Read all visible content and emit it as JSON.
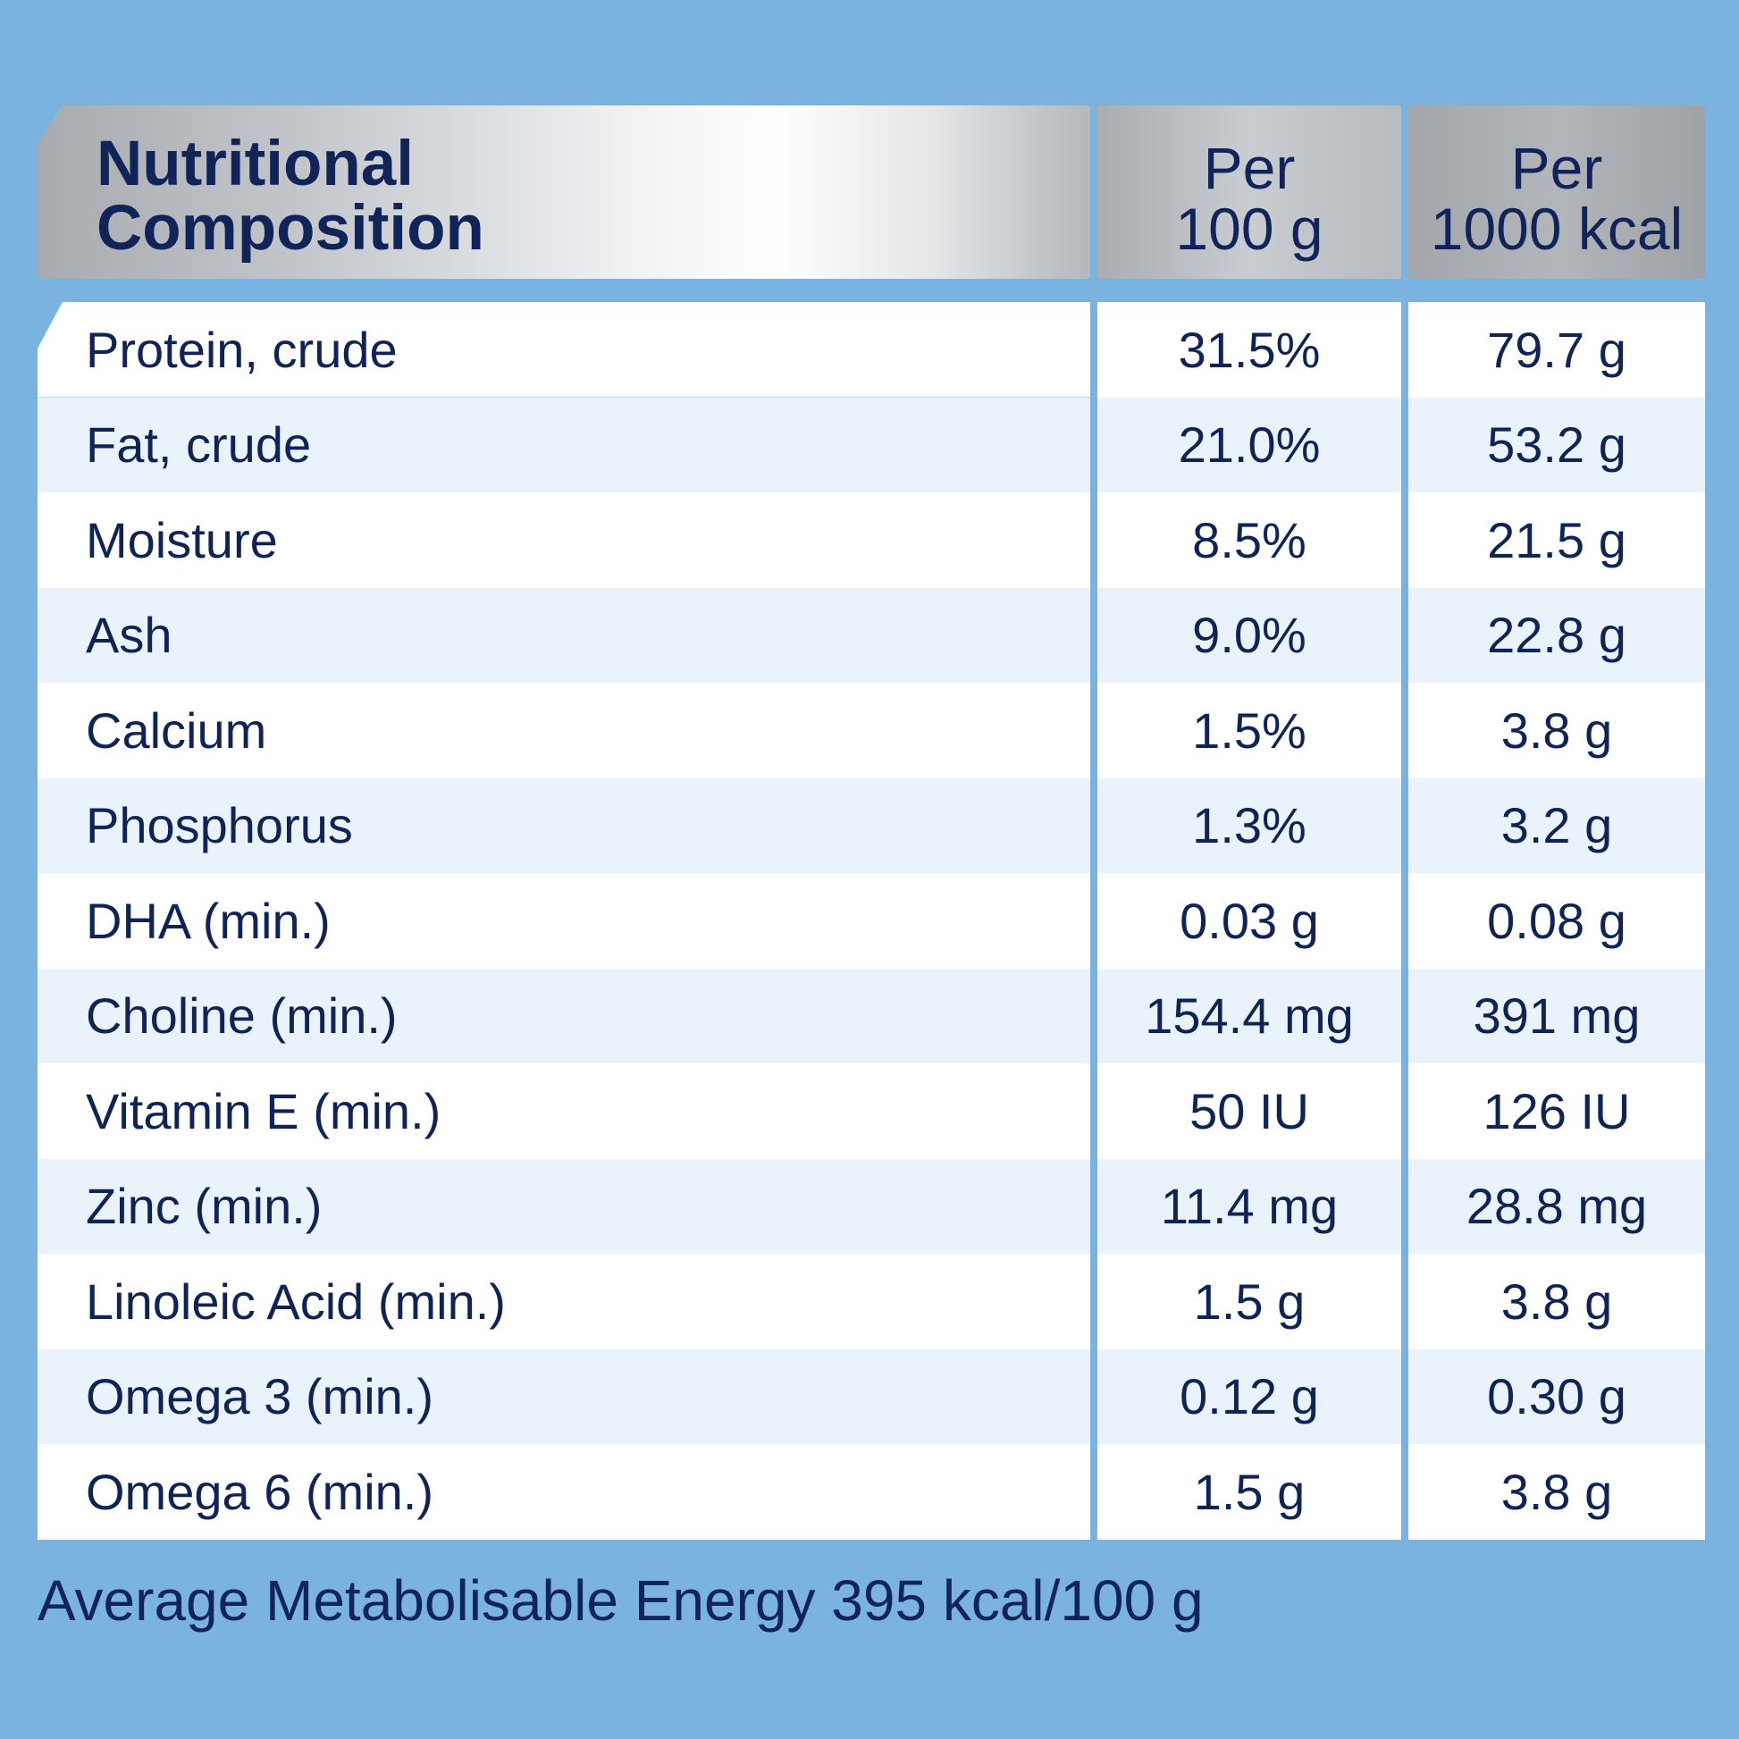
{
  "header": {
    "label": "Nutritional\nComposition",
    "col1": "Per\n100 g",
    "col2": "Per\n1000 kcal"
  },
  "rows": [
    {
      "name": "Protein, crude",
      "per100g": "31.5%",
      "per1000kcal": "79.7 g"
    },
    {
      "name": "Fat, crude",
      "per100g": "21.0%",
      "per1000kcal": "53.2 g"
    },
    {
      "name": "Moisture",
      "per100g": "8.5%",
      "per1000kcal": "21.5 g"
    },
    {
      "name": "Ash",
      "per100g": "9.0%",
      "per1000kcal": "22.8 g"
    },
    {
      "name": "Calcium",
      "per100g": "1.5%",
      "per1000kcal": "3.8 g"
    },
    {
      "name": "Phosphorus",
      "per100g": "1.3%",
      "per1000kcal": "3.2 g"
    },
    {
      "name": "DHA (min.)",
      "per100g": "0.03 g",
      "per1000kcal": "0.08 g"
    },
    {
      "name": "Choline (min.)",
      "per100g": "154.4 mg",
      "per1000kcal": "391 mg"
    },
    {
      "name": "Vitamin E (min.)",
      "per100g": "50 IU",
      "per1000kcal": "126 IU"
    },
    {
      "name": "Zinc (min.)",
      "per100g": "11.4 mg",
      "per1000kcal": "28.8 mg"
    },
    {
      "name": "Linoleic Acid (min.)",
      "per100g": "1.5 g",
      "per1000kcal": "3.8 g"
    },
    {
      "name": "Omega 3 (min.)",
      "per100g": "0.12 g",
      "per1000kcal": "0.30 g"
    },
    {
      "name": "Omega 6 (min.)",
      "per100g": "1.5 g",
      "per1000kcal": "3.8 g"
    }
  ],
  "footer": "Average Metabolisable Energy 395 kcal/100 g",
  "colors": {
    "background": "#7ab3df",
    "text": "#0f2356",
    "row_tint": "#eaf3fb"
  }
}
